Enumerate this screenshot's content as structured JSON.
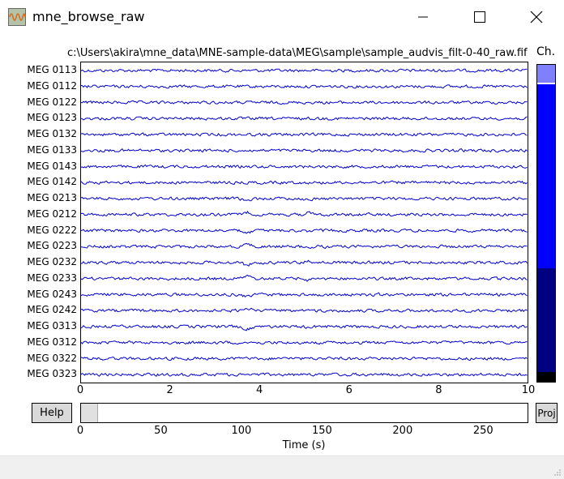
{
  "window": {
    "title": "mne_browse_raw",
    "minimize_icon": "minimize-icon",
    "maximize_icon": "maximize-icon",
    "close_icon": "close-icon"
  },
  "figure": {
    "filepath": "c:\\Users\\akira\\mne_data\\MNE-sample-data\\MEG\\sample\\sample_audvis_filt-0-40_raw.fif",
    "channel_bar_label": "Ch.",
    "trace_color": "#0000cc",
    "channel_bar_colors": [
      "#8080ff",
      "#0000ff",
      "#000080",
      "#000000"
    ]
  },
  "channels": [
    "MEG 0113",
    "MEG 0112",
    "MEG 0122",
    "MEG 0123",
    "MEG 0132",
    "MEG 0133",
    "MEG 0143",
    "MEG 0142",
    "MEG 0213",
    "MEG 0212",
    "MEG 0222",
    "MEG 0223",
    "MEG 0232",
    "MEG 0233",
    "MEG 0243",
    "MEG 0242",
    "MEG 0313",
    "MEG 0312",
    "MEG 0322",
    "MEG 0323"
  ],
  "x_axis": {
    "ticks": [
      "0",
      "2",
      "4",
      "6",
      "8",
      "10"
    ],
    "range": [
      0,
      10
    ]
  },
  "time_bar": {
    "ticks": [
      "0",
      "50",
      "100",
      "150",
      "200",
      "250"
    ],
    "range": [
      0,
      278
    ],
    "window": [
      0,
      10
    ]
  },
  "xlabel": "Time (s)",
  "buttons": {
    "help": "Help",
    "proj": "Proj"
  }
}
